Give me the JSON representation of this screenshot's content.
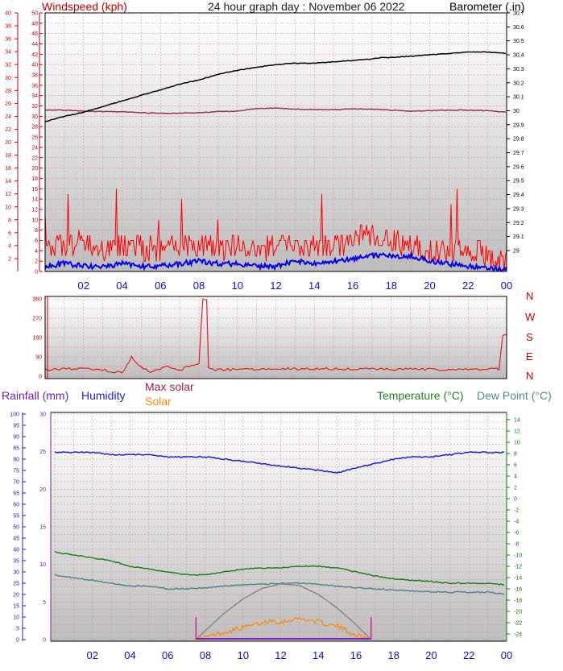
{
  "header": {
    "wind_title": "Windspeed (kph)",
    "graph_title": "24 hour graph day : November 06 2022",
    "baro_title": "Barometer (.in)"
  },
  "legends": {
    "rainfall": "Rainfall (mm)",
    "humidity": "Humidity",
    "max_solar": "Max solar",
    "solar": "Solar",
    "temperature": "Temperature (°C)",
    "dew_point": "Dew Point (°C)"
  },
  "compass": [
    "N",
    "W",
    "S",
    "E",
    "N"
  ],
  "colors": {
    "wind_gust": "#ff0000",
    "wind_avg": "#0000ee",
    "barometer": "#000000",
    "baro_alt": "#a03050",
    "direction": "#e02020",
    "humidity": "#2020d0",
    "temperature": "#208020",
    "dew_point": "#508890",
    "solar": "#ff8800",
    "max_solar": "#888888",
    "axis_wind": "#c00000",
    "axis_baro": "#000000",
    "axis_temp": "#008000",
    "grid": "#e88888"
  },
  "chart_data": [
    {
      "type": "line",
      "title": "24 hour graph day : November 06 2022",
      "x_ticks": [
        "02",
        "04",
        "06",
        "08",
        "10",
        "12",
        "14",
        "16",
        "18",
        "20",
        "22",
        "00"
      ],
      "left_axis": {
        "label": "Windspeed (kph)",
        "range": [
          0,
          50
        ],
        "ticks": [
          "0",
          "2",
          "4",
          "6",
          "8",
          "10",
          "12",
          "14",
          "16",
          "18",
          "20",
          "22",
          "24",
          "26",
          "28",
          "30",
          "32",
          "34",
          "36",
          "38",
          "40",
          "42",
          "44",
          "46",
          "48",
          "50"
        ]
      },
      "right_axis": {
        "label": "Barometer (.in)",
        "range": [
          28.85,
          30.7
        ],
        "ticks": [
          "29",
          "29.1",
          "29.2",
          "29.3",
          "29.4",
          "29.5",
          "29.6",
          "29.7",
          "29.8",
          "29.9",
          "30",
          "30.1",
          "30.2",
          "30.3",
          "30.4",
          "30.5",
          "30.6",
          "30.7"
        ]
      },
      "far_left_ticks": [
        "2",
        "4",
        "6",
        "8",
        "10",
        "12",
        "14",
        "16",
        "18",
        "20",
        "22",
        "24",
        "26",
        "28",
        "30",
        "32",
        "34",
        "36",
        "38",
        "40"
      ],
      "x_hours": [
        0,
        1,
        2,
        3,
        4,
        5,
        6,
        7,
        8,
        9,
        10,
        11,
        12,
        13,
        14,
        15,
        16,
        17,
        17.5,
        18,
        19,
        20,
        21,
        22,
        23,
        24
      ],
      "series": [
        {
          "name": "Barometer (.in)",
          "axis": "right",
          "values": [
            29.92,
            29.96,
            29.99,
            30.03,
            30.07,
            30.11,
            30.15,
            30.19,
            30.22,
            30.26,
            30.29,
            30.31,
            30.33,
            30.34,
            30.34,
            30.35,
            30.36,
            30.37,
            30.38,
            30.38,
            30.39,
            30.4,
            30.41,
            30.42,
            30.42,
            30.41
          ]
        },
        {
          "axis": "left",
          "values": [
            31.2,
            31.2,
            31,
            30.9,
            30.9,
            30.7,
            30.6,
            30.6,
            30.7,
            30.9,
            31,
            31.5,
            31.6,
            31.4,
            31.3,
            31.3,
            31.4,
            31.4,
            31.3,
            31.2,
            31,
            31.1,
            31.2,
            31.2,
            31.1,
            30.8
          ]
        },
        {
          "name": "Windspeed (kph)",
          "axis": "left",
          "label": "gust",
          "values": [
            5,
            5,
            6,
            4,
            5,
            5,
            4,
            5,
            5,
            4,
            5,
            4,
            5,
            5,
            5,
            5,
            6,
            7,
            6,
            6,
            5,
            4,
            4,
            5,
            3,
            2
          ]
        },
        {
          "axis": "left",
          "label": "average",
          "values": [
            1,
            1.5,
            1,
            1,
            1.5,
            1,
            1,
            1.5,
            2,
            1.5,
            1.5,
            1,
            1,
            2,
            1.5,
            2,
            2.5,
            3,
            3,
            3,
            3,
            2,
            1.5,
            1,
            0.5,
            0.5
          ]
        }
      ]
    },
    {
      "type": "line",
      "left_axis": {
        "range": [
          0,
          360
        ],
        "ticks": [
          "0",
          "90",
          "180",
          "270",
          "360"
        ]
      },
      "right_labels": [
        "N",
        "W",
        "S",
        "E",
        "N"
      ],
      "x_hours": [
        0,
        1,
        2,
        3,
        3.5,
        4,
        4.5,
        5,
        5.5,
        6,
        6.5,
        7,
        7.5,
        8,
        8.2,
        8.4,
        8.5,
        8.7,
        9,
        10,
        11,
        12,
        13,
        14,
        15,
        16,
        17,
        18,
        19,
        20,
        21,
        22,
        23,
        23.6,
        23.8,
        24
      ],
      "series": [
        {
          "values": [
            30,
            35,
            33,
            30,
            20,
            15,
            90,
            40,
            20,
            35,
            45,
            25,
            50,
            60,
            360,
            360,
            40,
            30,
            30,
            32,
            33,
            35,
            33,
            33,
            34,
            32,
            33,
            32,
            34,
            31,
            33,
            33,
            33,
            33,
            190,
            190
          ]
        }
      ]
    },
    {
      "type": "line",
      "legend": [
        "Rainfall (mm)",
        "Humidity",
        "Max solar",
        "Solar",
        "Temperature (°C)",
        "Dew Point (°C)"
      ],
      "x_ticks": [
        "02",
        "04",
        "06",
        "08",
        "10",
        "12",
        "14",
        "16",
        "18",
        "20",
        "22",
        "00"
      ],
      "rain_axis": {
        "range": [
          0,
          30
        ],
        "ticks": [
          "0",
          "5",
          "10",
          "15",
          "20",
          "25",
          "30"
        ]
      },
      "humidity_axis": {
        "range": [
          0,
          100
        ],
        "ticks": [
          "0",
          "5",
          "10",
          "15",
          "20",
          "25",
          "30",
          "35",
          "40",
          "45",
          "50",
          "55",
          "60",
          "65",
          "70",
          "75",
          "80",
          "85",
          "90",
          "95",
          "100"
        ]
      },
      "temp_axis": {
        "range": [
          -25,
          15
        ],
        "ticks": [
          "-24",
          "-22",
          "-20",
          "-18",
          "-16",
          "-14",
          "-12",
          "-10",
          "-8",
          "-6",
          "-4",
          "-2",
          "0",
          "2",
          "4",
          "6",
          "8",
          "10",
          "12",
          "14"
        ]
      },
      "x_hours": [
        0,
        1,
        2,
        3,
        4,
        5,
        6,
        7,
        8,
        9,
        10,
        11,
        12,
        13,
        14,
        15,
        16,
        17,
        18,
        19,
        20,
        21,
        22,
        23,
        24
      ],
      "series": [
        {
          "name": "Humidity",
          "axis": "humidity",
          "values": [
            83,
            83,
            83,
            82,
            82,
            82,
            81,
            81,
            81,
            80,
            79,
            78,
            77,
            76,
            75,
            74,
            76,
            78,
            80,
            81,
            81,
            82,
            83,
            83,
            83
          ]
        },
        {
          "name": "Temperature (°C)",
          "axis": "temp",
          "values": [
            -9.5,
            -10,
            -10.5,
            -11,
            -12,
            -12.5,
            -13,
            -13.5,
            -13.5,
            -13,
            -12.5,
            -12.3,
            -12.3,
            -12,
            -12,
            -12.3,
            -13,
            -13.7,
            -14.2,
            -14.5,
            -14.7,
            -15,
            -15,
            -15,
            -15.3
          ]
        },
        {
          "name": "Dew Point (°C)",
          "axis": "temp",
          "values": [
            -13.5,
            -14,
            -14.5,
            -15,
            -15.5,
            -15.5,
            -16,
            -16,
            -15.8,
            -15.5,
            -15.3,
            -15.2,
            -15,
            -15,
            -15.2,
            -15.5,
            -15.8,
            -16,
            -16.2,
            -16.4,
            -16.5,
            -16.6,
            -16.6,
            -16.6,
            -17
          ]
        },
        {
          "name": "Max solar",
          "axis": "rain",
          "x": [
            7.5,
            8,
            9,
            10,
            11,
            12,
            13,
            14,
            15,
            16,
            16.8
          ],
          "values": [
            0,
            1.2,
            3.5,
            5.4,
            6.8,
            7.4,
            7.2,
            6,
            4.2,
            2,
            0
          ]
        },
        {
          "name": "Solar",
          "axis": "rain",
          "x": [
            7.5,
            8,
            9,
            10,
            10.5,
            11,
            11.5,
            12,
            12.5,
            13,
            13.5,
            14,
            14.5,
            15,
            15.5,
            16,
            16.8
          ],
          "values": [
            0,
            0.3,
            1,
            1.6,
            1.9,
            2.2,
            2.6,
            2.3,
            2.6,
            2.8,
            2.6,
            2.4,
            2,
            1.8,
            1.2,
            0.6,
            0
          ]
        }
      ]
    }
  ]
}
